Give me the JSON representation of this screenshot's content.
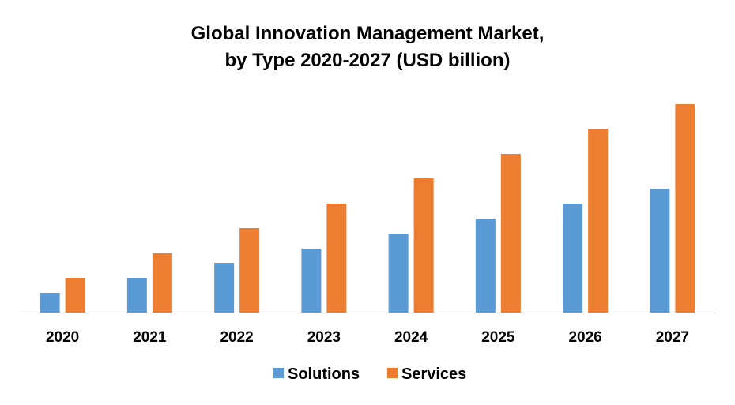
{
  "chart_data": {
    "type": "bar",
    "title_line1": "Global Innovation Management Market,",
    "title_line2": "by Type 2020-2027 (USD billion)",
    "xlabel": "",
    "ylabel": "",
    "categories": [
      "2020",
      "2021",
      "2022",
      "2023",
      "2024",
      "2025",
      "2026",
      "2027"
    ],
    "series": [
      {
        "name": "Solutions",
        "color": "#5B9BD5",
        "values": [
          25,
          44,
          63,
          81,
          100,
          119,
          138,
          157
        ]
      },
      {
        "name": "Services",
        "color": "#ED7D31",
        "values": [
          44,
          75,
          107,
          138,
          170,
          201,
          233,
          264
        ]
      }
    ],
    "ylim": [
      0,
      264
    ],
    "y_axis_shown": false,
    "grid": false,
    "legend_position": "bottom"
  }
}
